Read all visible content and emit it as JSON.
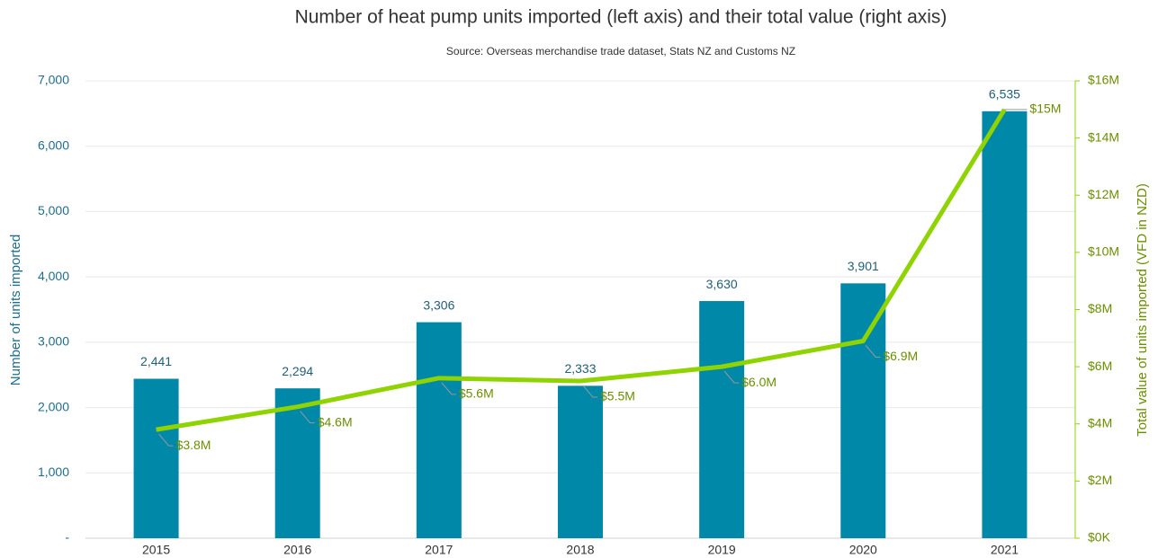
{
  "chart_data": {
    "type": "bar-line",
    "title": "Number of heat pump units imported (left axis) and their total value (right axis)",
    "subtitle": "Source: Overseas merchandise trade dataset, Stats NZ and Customs NZ",
    "ylabel": "Number of units imported",
    "y2label": "Total value of units imported (VFD in NZD)",
    "categories": [
      "2015",
      "2016",
      "2017",
      "2018",
      "2019",
      "2020",
      "2021"
    ],
    "series": [
      {
        "name": "Number of units imported",
        "color": "#0088a8",
        "kind": "bar",
        "values": [
          2441,
          2294,
          3306,
          2333,
          3630,
          3901,
          6535
        ],
        "value_labels": [
          "2,441",
          "2,294",
          "3,306",
          "2,333",
          "3,630",
          "3,901",
          "6,535"
        ]
      },
      {
        "name": "Total value of units imported",
        "color": "#8fd400",
        "kind": "line",
        "axis": "y2",
        "values": [
          3800000,
          4600000,
          5600000,
          5500000,
          6000000,
          6900000,
          15000000
        ],
        "value_labels": [
          "$3.8M",
          "$4.6M",
          "$5.6M",
          "$5.5M",
          "$6.0M",
          "$6.9M",
          "$15M"
        ]
      }
    ],
    "ylim": [
      0,
      7000
    ],
    "yticks": [
      {
        "value": 0,
        "label": "-"
      },
      {
        "value": 1000,
        "label": "1,000"
      },
      {
        "value": 2000,
        "label": "2,000"
      },
      {
        "value": 3000,
        "label": "3,000"
      },
      {
        "value": 4000,
        "label": "4,000"
      },
      {
        "value": 5000,
        "label": "5,000"
      },
      {
        "value": 6000,
        "label": "6,000"
      },
      {
        "value": 7000,
        "label": "7,000"
      }
    ],
    "y2lim": [
      0,
      16000000
    ],
    "y2ticks": [
      {
        "value": 0,
        "label": "$0K"
      },
      {
        "value": 2000000,
        "label": "$2M"
      },
      {
        "value": 4000000,
        "label": "$4M"
      },
      {
        "value": 6000000,
        "label": "$6M"
      },
      {
        "value": 8000000,
        "label": "$8M"
      },
      {
        "value": 10000000,
        "label": "$10M"
      },
      {
        "value": 12000000,
        "label": "$12M"
      },
      {
        "value": 14000000,
        "label": "$14M"
      },
      {
        "value": 16000000,
        "label": "$16M"
      }
    ],
    "grid": true
  }
}
